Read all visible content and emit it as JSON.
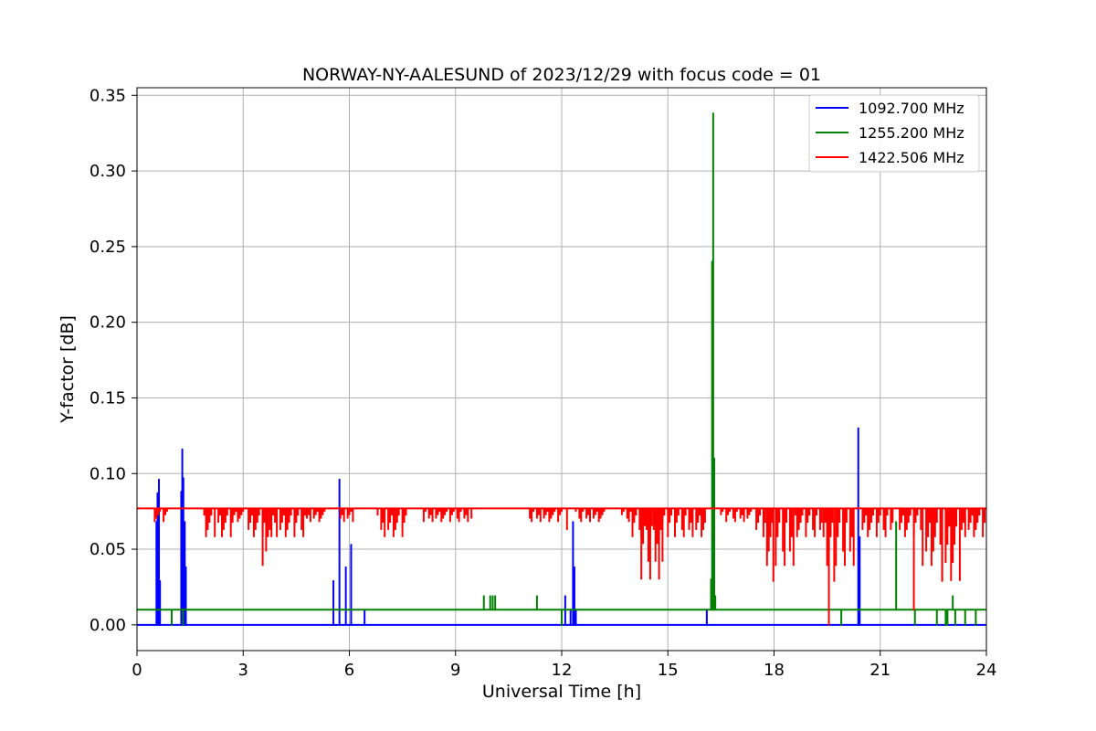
{
  "chart_data": {
    "type": "line",
    "title": "NORWAY-NY-AALESUND of 2023/12/29 with focus code = 01",
    "xlabel": "Universal Time [h]",
    "ylabel": "Y-factor [dB]",
    "xlim": [
      0,
      24
    ],
    "ylim": [
      -0.017,
      0.355
    ],
    "xticks": [
      0,
      3,
      6,
      9,
      12,
      15,
      18,
      21,
      24
    ],
    "xtick_labels": [
      "0",
      "3",
      "6",
      "9",
      "12",
      "15",
      "18",
      "21",
      "24"
    ],
    "yticks": [
      0.0,
      0.05,
      0.1,
      0.15,
      0.2,
      0.25,
      0.3,
      0.35
    ],
    "ytick_labels": [
      "0.00",
      "0.05",
      "0.10",
      "0.15",
      "0.20",
      "0.25",
      "0.30",
      "0.35"
    ],
    "grid": true,
    "legend_position": "top-right",
    "series": [
      {
        "name": "1092.700 MHz",
        "color": "#0000ff",
        "baseline": 0.0,
        "spikes": [
          [
            0.55,
            0.068
          ],
          [
            0.58,
            0.087
          ],
          [
            0.62,
            0.096
          ],
          [
            0.65,
            0.029
          ],
          [
            1.25,
            0.088
          ],
          [
            1.28,
            0.116
          ],
          [
            1.31,
            0.097
          ],
          [
            1.35,
            0.068
          ],
          [
            1.38,
            0.038
          ],
          [
            5.55,
            0.029
          ],
          [
            5.72,
            0.096
          ],
          [
            5.9,
            0.038
          ],
          [
            6.05,
            0.053
          ],
          [
            6.43,
            0.01
          ],
          [
            12.1,
            0.019
          ],
          [
            12.25,
            0.01
          ],
          [
            12.32,
            0.068
          ],
          [
            12.36,
            0.038
          ],
          [
            12.4,
            0.01
          ],
          [
            16.1,
            0.01
          ],
          [
            20.38,
            0.13
          ],
          [
            20.42,
            0.058
          ]
        ]
      },
      {
        "name": "1255.200 MHz",
        "color": "#008000",
        "baseline": 0.01,
        "spikes": [
          [
            0.98,
            0.0
          ],
          [
            1.3,
            0.0
          ],
          [
            9.8,
            0.019
          ],
          [
            9.98,
            0.019
          ],
          [
            10.05,
            0.019
          ],
          [
            10.12,
            0.019
          ],
          [
            11.3,
            0.019
          ],
          [
            12.0,
            0.0
          ],
          [
            16.22,
            0.03
          ],
          [
            16.25,
            0.24
          ],
          [
            16.28,
            0.338
          ],
          [
            16.31,
            0.11
          ],
          [
            16.34,
            0.019
          ],
          [
            19.9,
            0.0
          ],
          [
            21.45,
            0.068
          ],
          [
            21.98,
            0.0
          ],
          [
            22.6,
            0.0
          ],
          [
            22.85,
            0.0
          ],
          [
            22.9,
            0.0
          ],
          [
            23.05,
            0.019
          ],
          [
            23.12,
            0.0
          ],
          [
            23.4,
            0.0
          ],
          [
            23.7,
            0.0
          ]
        ]
      },
      {
        "name": "1422.506 MHz",
        "color": "#ff0000",
        "baseline": 0.077,
        "bands": [
          [
            0.5,
            0.9,
            0.068
          ],
          [
            1.9,
            2.2,
            0.058
          ],
          [
            2.3,
            2.7,
            0.058
          ],
          [
            2.7,
            3.0,
            0.068
          ],
          [
            3.1,
            3.9,
            0.058
          ],
          [
            3.55,
            3.7,
            0.039
          ],
          [
            3.9,
            4.8,
            0.058
          ],
          [
            4.8,
            5.3,
            0.068
          ],
          [
            5.7,
            6.1,
            0.068
          ],
          [
            6.8,
            7.6,
            0.058
          ],
          [
            8.1,
            9.5,
            0.068
          ],
          [
            11.1,
            12.1,
            0.068
          ],
          [
            12.1,
            12.2,
            0.058
          ],
          [
            12.4,
            13.3,
            0.068
          ],
          [
            13.7,
            14.0,
            0.068
          ],
          [
            14.0,
            15.1,
            0.058
          ],
          [
            14.2,
            14.9,
            0.03
          ],
          [
            15.1,
            16.1,
            0.058
          ],
          [
            16.5,
            17.4,
            0.068
          ],
          [
            17.5,
            17.8,
            0.058
          ],
          [
            17.8,
            18.6,
            0.039
          ],
          [
            18.6,
            19.4,
            0.058
          ],
          [
            19.4,
            20.3,
            0.039
          ],
          [
            20.5,
            21.4,
            0.058
          ],
          [
            21.5,
            22.2,
            0.058
          ],
          [
            22.2,
            22.7,
            0.039
          ],
          [
            22.7,
            23.3,
            0.029
          ],
          [
            23.3,
            24.0,
            0.058
          ]
        ],
        "spikes": [
          [
            17.98,
            0.029
          ],
          [
            19.55,
            0.0
          ],
          [
            19.7,
            0.029
          ],
          [
            21.95,
            0.01
          ],
          [
            22.75,
            0.029
          ]
        ]
      }
    ]
  }
}
